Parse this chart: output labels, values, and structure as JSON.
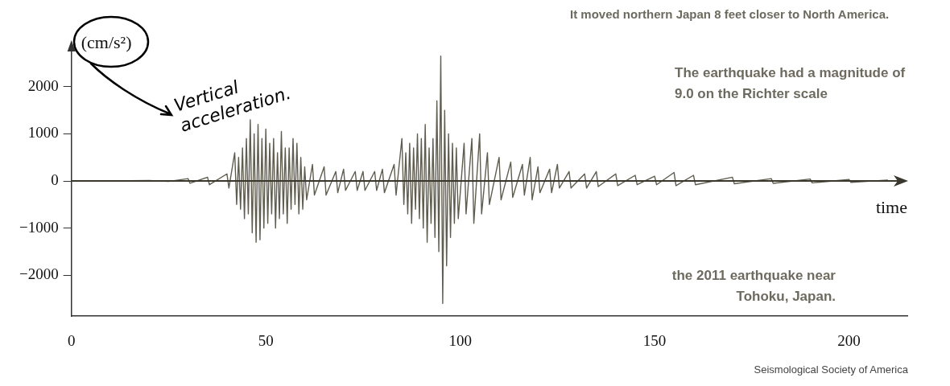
{
  "chart_data": {
    "type": "line",
    "ylabel": "(cm/s²)",
    "xlabel": "time",
    "annotations": [
      "It moved northern Japan 8 feet closer to North America.",
      "Vertical acceleration.",
      "The earthquake had a magnitude of 9.0 on the Richter scale",
      "the 2011 earthquake near Tohoku, Japan.",
      "Seismological Society of America"
    ],
    "x": [
      0,
      10,
      20,
      25,
      30,
      30.5,
      35,
      35.5,
      40,
      40.5,
      42,
      42.5,
      43,
      43.5,
      44,
      44.5,
      45,
      45.5,
      46,
      46.5,
      47,
      47.5,
      48,
      48.5,
      49,
      49.5,
      50,
      50.5,
      51,
      51.5,
      52,
      52.5,
      53,
      53.5,
      54,
      54.5,
      55,
      55.5,
      56,
      56.5,
      57,
      57.5,
      58,
      58.5,
      59,
      59.5,
      60,
      60.5,
      62,
      62.5,
      65,
      65.5,
      68,
      68.5,
      70,
      70.5,
      73,
      73.5,
      75,
      75.5,
      78,
      78.5,
      80,
      80.5,
      83,
      83.5,
      85,
      85.5,
      86,
      86.5,
      87,
      87.5,
      88,
      88.5,
      89,
      89.5,
      90,
      90.5,
      91,
      91.5,
      92,
      92.5,
      93,
      93.5,
      94,
      94.5,
      95,
      95.5,
      96,
      96.5,
      97,
      97.5,
      98,
      98.5,
      99,
      99.5,
      101,
      101.5,
      103,
      103.5,
      105,
      105.5,
      107,
      107.5,
      110,
      110.5,
      113,
      113.5,
      116,
      116.5,
      118,
      118.5,
      120,
      120.5,
      123,
      123.5,
      125,
      125.5,
      128,
      128.5,
      132,
      132.5,
      135,
      135.5,
      140,
      140.5,
      145,
      145.5,
      150,
      150.5,
      155,
      155.5,
      160,
      160.5,
      170,
      170.5,
      180,
      180.5,
      190,
      190.5,
      200,
      200.5,
      210
    ],
    "series": [
      {
        "color": "#5f5d4f",
        "values": [
          0,
          0,
          10,
          -10,
          50,
          -50,
          80,
          -80,
          150,
          -150,
          600,
          -500,
          500,
          -600,
          700,
          -800,
          900,
          -700,
          1300,
          -1100,
          1000,
          -1300,
          1200,
          -1250,
          900,
          -1000,
          1100,
          -900,
          800,
          -700,
          900,
          -1000,
          600,
          -800,
          1050,
          -700,
          700,
          -900,
          700,
          -600,
          900,
          -500,
          800,
          -700,
          500,
          -600,
          300,
          -400,
          350,
          -300,
          300,
          -300,
          200,
          -250,
          250,
          -200,
          200,
          -200,
          200,
          -200,
          200,
          -200,
          250,
          -250,
          350,
          -300,
          900,
          -500,
          600,
          -700,
          800,
          -900,
          700,
          -600,
          1000,
          -800,
          900,
          -1000,
          1200,
          -1300,
          700,
          -900,
          900,
          -1200,
          1700,
          -1500,
          2650,
          -2600,
          1500,
          -1800,
          1000,
          -1200,
          800,
          -900,
          700,
          -800,
          800,
          -700,
          900,
          -900,
          1000,
          -700,
          600,
          -500,
          500,
          -400,
          400,
          -350,
          350,
          -300,
          500,
          -400,
          300,
          -250,
          250,
          -250,
          350,
          -150,
          200,
          -150,
          150,
          -150,
          200,
          -120,
          150,
          -100,
          120,
          -80,
          100,
          -80,
          180,
          -100,
          120,
          -80,
          80,
          -60,
          50,
          -50,
          40,
          -40,
          30,
          -30,
          20
        ]
      }
    ],
    "xlim": [
      0,
      215
    ],
    "xticks": [
      0,
      50,
      100,
      150,
      200
    ],
    "ylim": [
      -2870,
      2850
    ],
    "yticks": [
      {
        "value": -2000,
        "label": "−2000"
      },
      {
        "value": -1000,
        "label": "−1000"
      },
      0,
      1000,
      2000
    ],
    "ref_lines": [
      {
        "axis": "y",
        "value": 0,
        "color": "#3a372c"
      }
    ],
    "grid": false,
    "legend": false,
    "marker": "none",
    "line_style": "solid"
  }
}
